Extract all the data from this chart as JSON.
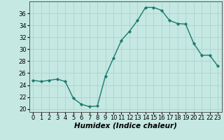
{
  "x": [
    0,
    1,
    2,
    3,
    4,
    5,
    6,
    7,
    8,
    9,
    10,
    11,
    12,
    13,
    14,
    15,
    16,
    17,
    18,
    19,
    20,
    21,
    22,
    23
  ],
  "y": [
    24.8,
    24.6,
    24.8,
    25.0,
    24.6,
    21.8,
    20.8,
    20.4,
    20.5,
    25.5,
    28.5,
    31.5,
    33.0,
    34.8,
    37.0,
    37.0,
    36.5,
    34.8,
    34.3,
    34.2,
    31.0,
    29.0,
    29.0,
    27.2
  ],
  "line_color": "#1a7a6e",
  "marker": "D",
  "marker_size": 2.2,
  "line_width": 1.0,
  "bg_color": "#c5e8e2",
  "grid_color": "#aad6cc",
  "xlabel": "Humidex (Indice chaleur)",
  "xlim": [
    -0.5,
    23.5
  ],
  "ylim": [
    19.5,
    38
  ],
  "yticks": [
    20,
    22,
    24,
    26,
    28,
    30,
    32,
    34,
    36
  ],
  "xtick_labels": [
    "0",
    "1",
    "2",
    "3",
    "4",
    "5",
    "6",
    "7",
    "8",
    "9",
    "1011",
    "1213",
    "1415",
    "1617",
    "1819",
    "2021",
    "2223"
  ],
  "xlabel_fontsize": 7.5,
  "tick_fontsize": 6.0,
  "spine_color": "#555555"
}
